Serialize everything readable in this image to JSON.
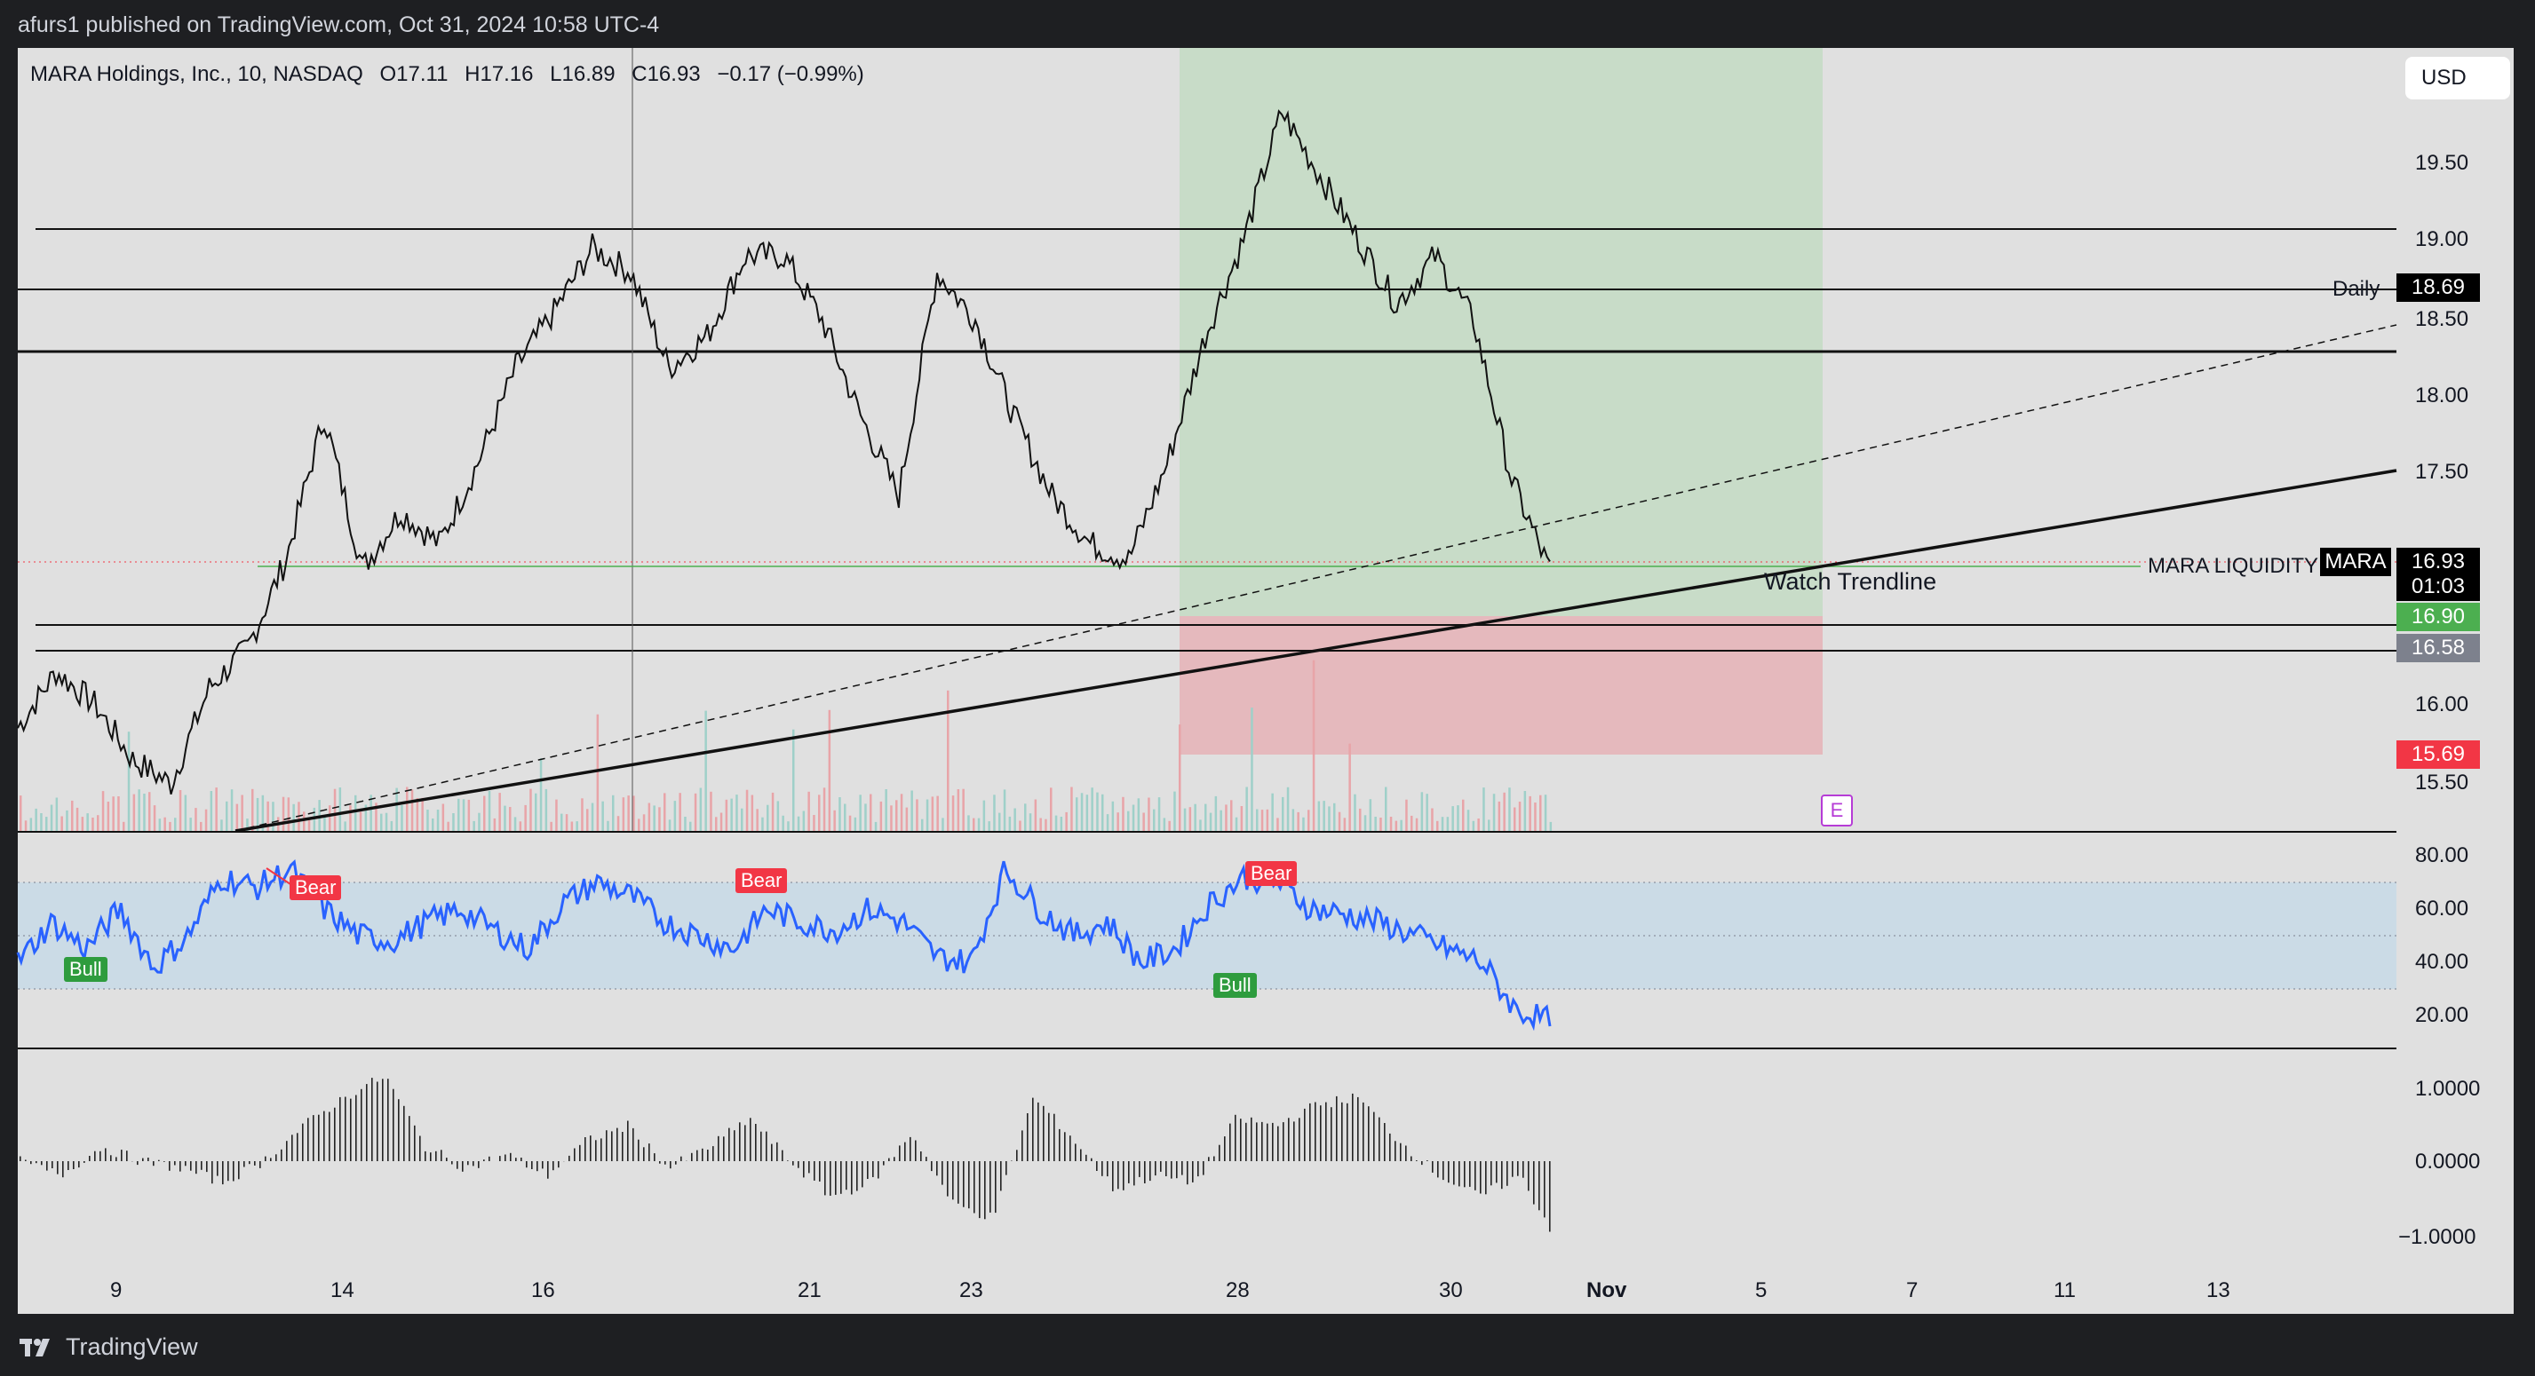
{
  "header": {
    "published": "afurs1 published on TradingView.com, Oct 31, 2024 10:58 UTC-4"
  },
  "legend": {
    "symbol": "MARA Holdings, Inc., 10, NASDAQ",
    "open": "O17.11",
    "high": "H17.16",
    "low": "L16.89",
    "close": "C16.93",
    "change": "−0.17 (−0.99%)"
  },
  "currency_button": "USD",
  "price_axis": {
    "labels": [
      "19.50",
      "19.00",
      "18.50",
      "18.00",
      "17.50",
      "16.00",
      "15.50"
    ]
  },
  "price_tags": {
    "daily_value": "18.69",
    "mara_symbol": "MARA",
    "current_price": "16.93",
    "countdown": "01:03",
    "target_green": "16.90",
    "gray_level": "16.58",
    "stop_red": "15.69"
  },
  "annotations": {
    "daily": "Daily",
    "mara_liquidity": "MARA LIQUIDITY",
    "watch_trendline": "Watch Trendline",
    "earnings_badge": "E"
  },
  "rsi": {
    "axis_labels": [
      "80.00",
      "60.00",
      "40.00",
      "20.00"
    ],
    "signals": [
      {
        "text": "Bull",
        "type": "bull"
      },
      {
        "text": "Bear",
        "type": "bear"
      },
      {
        "text": "Bear",
        "type": "bear"
      },
      {
        "text": "Bear",
        "type": "bear"
      },
      {
        "text": "Bull",
        "type": "bull"
      }
    ]
  },
  "oscillator": {
    "axis_labels": [
      "1.0000",
      "0.0000",
      "−1.0000"
    ]
  },
  "time_axis": {
    "labels": [
      "9",
      "14",
      "16",
      "21",
      "23",
      "28",
      "30",
      "Nov",
      "5",
      "7",
      "11",
      "13"
    ]
  },
  "footer": {
    "brand": "TradingView"
  },
  "colors": {
    "up_green": "#4caf50",
    "down_red": "#f23645",
    "rsi_line": "#2962ff",
    "profit_zone": "#c8dcc8",
    "loss_zone": "#e5b9bd"
  },
  "chart_data": {
    "type": "candlestick",
    "interval": "10",
    "series": [
      {
        "name": "MARA",
        "values": [
          15.95,
          16.3,
          16.1,
          15.75,
          15.6,
          16.2,
          16.45,
          17.0,
          17.9,
          16.95,
          17.3,
          17.1,
          17.6,
          18.2,
          18.55,
          18.95,
          18.8,
          18.2,
          18.4,
          18.9,
          18.9,
          18.5,
          17.9,
          17.4,
          18.8,
          18.5,
          17.9,
          17.4,
          17.1,
          17.0,
          17.6,
          18.4,
          19.0,
          19.8,
          19.4,
          19.0,
          18.6,
          18.9,
          18.5,
          17.5,
          16.93
        ]
      }
    ],
    "horizontal_levels": [
      19.07,
      18.69,
      18.29,
      16.58,
      16.51
    ],
    "ylim": [
      15.3,
      20.2
    ],
    "rsi_levels": [
      70,
      50,
      30
    ]
  }
}
